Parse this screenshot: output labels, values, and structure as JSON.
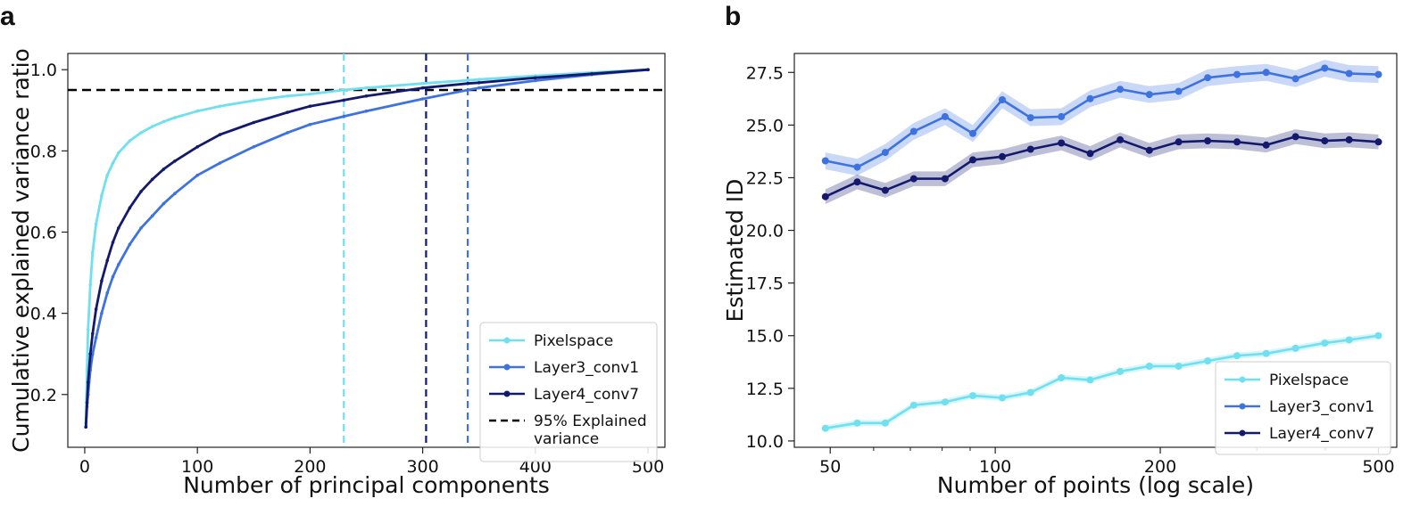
{
  "panel_letters": [
    "a",
    "b"
  ],
  "chart_data": [
    {
      "type": "line",
      "panel": "a",
      "xlabel": "Number of principal components",
      "ylabel": "Cumulative explained variance ratio",
      "xlim": [
        -15,
        515
      ],
      "ylim": [
        0.07,
        1.04
      ],
      "xticks": [
        0,
        100,
        200,
        300,
        400,
        500
      ],
      "xtick_labels": [
        "0",
        "100",
        "200",
        "300",
        "400",
        "500"
      ],
      "yticks": [
        0.2,
        0.4,
        0.6,
        0.8,
        1.0
      ],
      "ytick_labels": [
        "0.2",
        "0.4",
        "0.6",
        "0.8",
        "1.0"
      ],
      "grid": false,
      "legend_position": "bottom-right",
      "x": [
        1,
        2,
        3,
        5,
        7,
        10,
        15,
        20,
        25,
        30,
        40,
        50,
        60,
        70,
        80,
        100,
        120,
        150,
        180,
        200,
        230,
        250,
        300,
        340,
        350,
        400,
        450,
        500
      ],
      "series": [
        {
          "name": "Pixelspace",
          "color": "#6fe0f0",
          "y": [
            0.13,
            0.26,
            0.36,
            0.47,
            0.55,
            0.62,
            0.69,
            0.74,
            0.77,
            0.795,
            0.825,
            0.845,
            0.86,
            0.872,
            0.882,
            0.898,
            0.91,
            0.924,
            0.935,
            0.94,
            0.95,
            0.955,
            0.966,
            0.974,
            0.976,
            0.985,
            0.993,
            1.0
          ]
        },
        {
          "name": "Layer3_conv1",
          "color": "#3d72e0",
          "y": [
            0.12,
            0.17,
            0.2,
            0.26,
            0.3,
            0.34,
            0.4,
            0.45,
            0.49,
            0.52,
            0.57,
            0.61,
            0.64,
            0.67,
            0.695,
            0.74,
            0.77,
            0.81,
            0.845,
            0.865,
            0.885,
            0.898,
            0.928,
            0.95,
            0.955,
            0.973,
            0.988,
            1.0
          ]
        },
        {
          "name": "Layer4_conv7",
          "color": "#131a6e",
          "y": [
            0.12,
            0.18,
            0.23,
            0.3,
            0.35,
            0.41,
            0.48,
            0.53,
            0.575,
            0.61,
            0.66,
            0.7,
            0.73,
            0.755,
            0.775,
            0.81,
            0.84,
            0.87,
            0.895,
            0.91,
            0.925,
            0.935,
            0.955,
            0.966,
            0.968,
            0.98,
            0.99,
            1.0
          ]
        }
      ],
      "reference_lines": [
        {
          "orientation": "horizontal",
          "value": 0.95,
          "color": "#000000",
          "style": "dashed",
          "label": "95% Explained\n variance"
        },
        {
          "orientation": "vertical",
          "value": 230,
          "color": "#6fe0f0",
          "style": "dashed"
        },
        {
          "orientation": "vertical",
          "value": 303,
          "color": "#131a6e",
          "style": "dashed"
        },
        {
          "orientation": "vertical",
          "value": 340,
          "color": "#3d72e0",
          "style": "dashed"
        }
      ]
    },
    {
      "type": "line",
      "panel": "b",
      "xlabel": "Number of points (log scale)",
      "ylabel": "Estimated ID",
      "xscale": "log",
      "xlim": [
        43,
        540
      ],
      "ylim": [
        9.7,
        28.4
      ],
      "xticks": [
        50,
        100,
        200,
        500
      ],
      "xtick_labels": [
        "50",
        "100",
        "200",
        "500"
      ],
      "yticks": [
        10.0,
        12.5,
        15.0,
        17.5,
        20.0,
        22.5,
        25.0,
        27.5
      ],
      "ytick_labels": [
        "10.0",
        "12.5",
        "15.0",
        "17.5",
        "20.0",
        "22.5",
        "25.0",
        "27.5"
      ],
      "grid": false,
      "legend_position": "bottom-right",
      "x": [
        49,
        56,
        63,
        71,
        81,
        91,
        103,
        116,
        132,
        149,
        169,
        191,
        216,
        244,
        276,
        312,
        353,
        399,
        442,
        500
      ],
      "series": [
        {
          "name": "Pixelspace",
          "color": "#6fe0f0",
          "y": [
            10.6,
            10.85,
            10.85,
            11.7,
            11.85,
            12.15,
            12.05,
            12.3,
            13.0,
            12.9,
            13.3,
            13.55,
            13.55,
            13.8,
            14.05,
            14.15,
            14.4,
            14.65,
            14.8,
            15.0
          ],
          "band": 0.15
        },
        {
          "name": "Layer3_conv1",
          "color": "#3d72e0",
          "y": [
            23.3,
            23.0,
            23.7,
            24.7,
            25.4,
            24.6,
            26.2,
            25.35,
            25.4,
            26.25,
            26.7,
            26.45,
            26.6,
            27.25,
            27.4,
            27.5,
            27.2,
            27.7,
            27.45,
            27.4
          ],
          "band": 0.4
        },
        {
          "name": "Layer4_conv7",
          "color": "#131a6e",
          "y": [
            21.6,
            22.3,
            21.9,
            22.45,
            22.45,
            23.35,
            23.5,
            23.85,
            24.15,
            23.65,
            24.3,
            23.8,
            24.2,
            24.25,
            24.2,
            24.05,
            24.45,
            24.25,
            24.3,
            24.2
          ],
          "band": 0.35
        }
      ]
    }
  ]
}
